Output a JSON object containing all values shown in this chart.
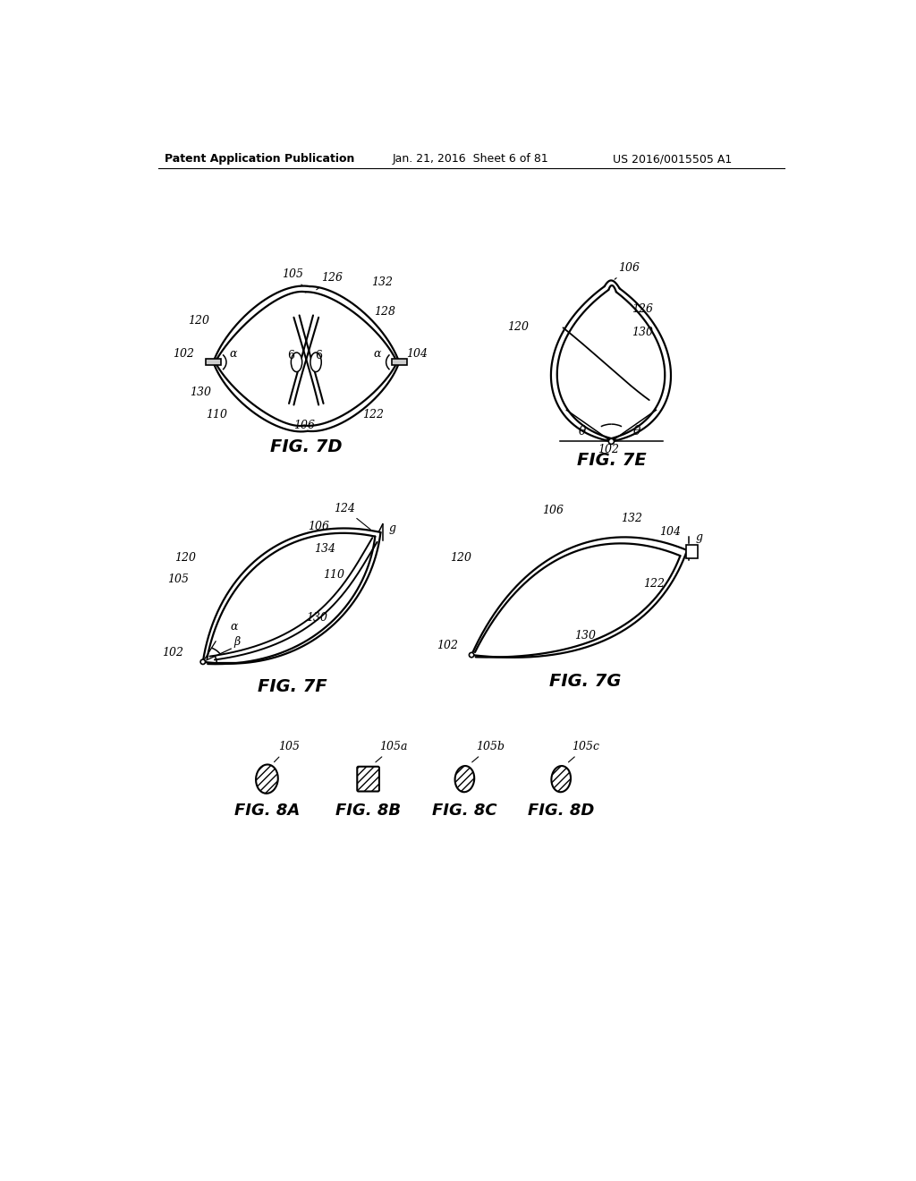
{
  "bg_color": "#ffffff",
  "line_color": "#000000",
  "header_left": "Patent Application Publication",
  "header_mid": "Jan. 21, 2016  Sheet 6 of 81",
  "header_right": "US 2016/0015505 A1"
}
